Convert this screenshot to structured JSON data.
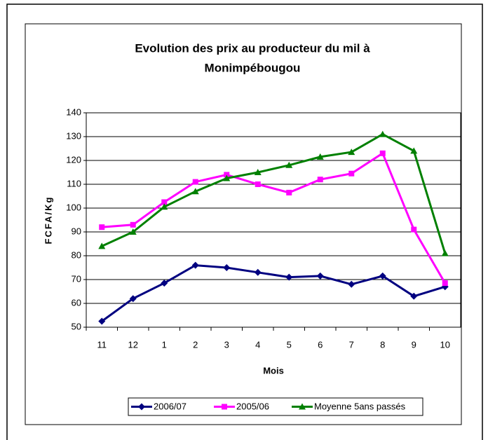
{
  "chart_data": {
    "type": "line",
    "title": [
      "Evolution des prix au producteur du mil à",
      "Monimpébougou"
    ],
    "ylabel": "FCFA/Kg",
    "xlabel": "Mois",
    "categories": [
      "11",
      "12",
      "1",
      "2",
      "3",
      "4",
      "5",
      "6",
      "7",
      "8",
      "9",
      "10"
    ],
    "series": [
      {
        "name": "2006/07",
        "color": "#000080",
        "marker": "diamond",
        "values": [
          52.5,
          62,
          68.5,
          76,
          75,
          73,
          71,
          71.5,
          68,
          71.5,
          63,
          67
        ]
      },
      {
        "name": "2005/06",
        "color": "#ff00ff",
        "marker": "square",
        "values": [
          92,
          93,
          102.5,
          111,
          114,
          110,
          106.5,
          112,
          114.5,
          123,
          91,
          68.5
        ]
      },
      {
        "name": "Moyenne 5ans passés",
        "color": "#008000",
        "marker": "triangle",
        "values": [
          84,
          90,
          100.5,
          107,
          112.5,
          115,
          118,
          121.5,
          123.5,
          131,
          124,
          81
        ]
      }
    ],
    "ylim": [
      50,
      140
    ],
    "yticks": [
      50,
      60,
      70,
      80,
      90,
      100,
      110,
      120,
      130,
      140
    ],
    "grid": true,
    "legend": "bottom"
  }
}
